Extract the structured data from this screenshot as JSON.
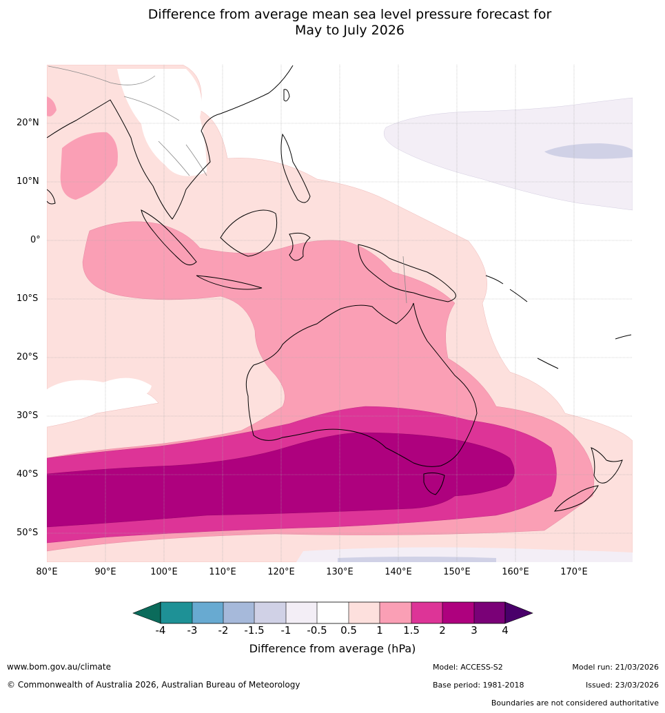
{
  "title": {
    "line1": "Difference from average mean sea level pressure forecast for",
    "line2": "May to July 2026"
  },
  "map": {
    "lat_labels": [
      "20°N",
      "10°N",
      "0°",
      "10°S",
      "20°S",
      "30°S",
      "40°S",
      "50°S"
    ],
    "lon_labels": [
      "80°E",
      "90°E",
      "100°E",
      "110°E",
      "120°E",
      "130°E",
      "140°E",
      "150°E",
      "160°E",
      "170°E"
    ],
    "lon_range": [
      80,
      180
    ],
    "lat_range": [
      -55,
      30
    ]
  },
  "colorbar": {
    "title": "Difference from average (hPa)",
    "ticks": [
      "-4",
      "-3",
      "-2",
      "-1.5",
      "-1",
      "-0.5",
      "0.5",
      "1",
      "1.5",
      "2",
      "3",
      "4"
    ],
    "colors": [
      "#0b6b5b",
      "#1e9196",
      "#68aad1",
      "#a6b9da",
      "#d0d1e6",
      "#f3eef6",
      "#ffffff",
      "#fde0dd",
      "#fa9fb5",
      "#dd3497",
      "#ae017e",
      "#7a0177",
      "#49006a"
    ]
  },
  "footer": {
    "url": "www.bom.gov.au/climate",
    "copyright": "© Commonwealth of Australia 2026, Australian Bureau of Meteorology",
    "model": "Model: ACCESS-S2",
    "base_period": "Base period: 1981-2018",
    "model_run": "Model run: 21/03/2026",
    "issued": "Issued: 23/03/2026",
    "disclaimer": "Boundaries are not considered authoritative"
  }
}
